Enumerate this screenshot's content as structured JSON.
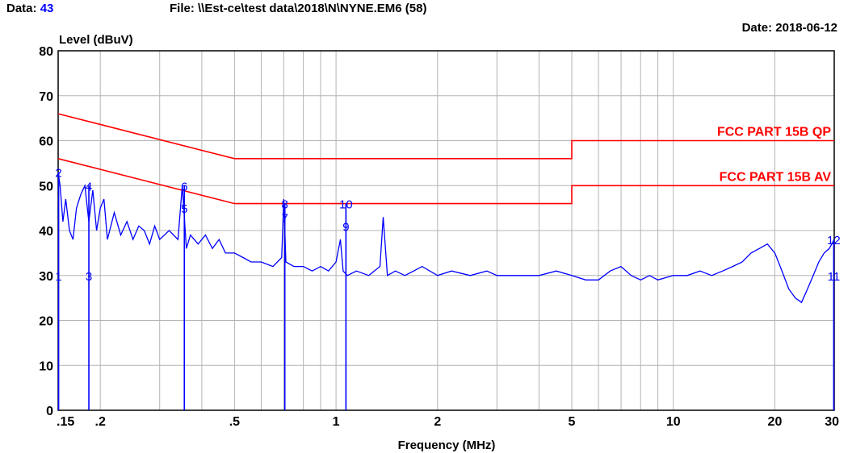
{
  "header": {
    "data_label": "Data:",
    "data_value": "43",
    "file_text": "File: \\\\Est-ce\\test data\\2018\\N\\NYNE.EM6  (58)",
    "date_text": "Date: 2018-06-12"
  },
  "colors": {
    "trace": "#0000ff",
    "limit": "#ff0000",
    "grid": "#b4b4b4",
    "data_value": "#0000ff"
  },
  "chart_data": {
    "type": "line",
    "title": "",
    "ylabel": "Level (dBuV)",
    "xlabel": "Frequency (MHz)",
    "x_scale": "log",
    "xlim": [
      0.15,
      30
    ],
    "ylim": [
      0,
      80
    ],
    "grid": true,
    "x_tick_labels": [
      {
        "value": 0.15,
        "label": ".15"
      },
      {
        "value": 0.2,
        "label": ".2"
      },
      {
        "value": 0.5,
        "label": ".5"
      },
      {
        "value": 1,
        "label": "1"
      },
      {
        "value": 2,
        "label": "2"
      },
      {
        "value": 5,
        "label": "5"
      },
      {
        "value": 10,
        "label": "10"
      },
      {
        "value": 20,
        "label": "20"
      },
      {
        "value": 30,
        "label": "30"
      }
    ],
    "y_ticks": [
      0,
      10,
      20,
      30,
      40,
      50,
      60,
      70,
      80
    ],
    "series": [
      {
        "name": "FCC PART 15B QP",
        "color": "#ff0000",
        "x": [
          0.15,
          0.5,
          0.5,
          5,
          5,
          30
        ],
        "y": [
          66,
          56,
          56,
          56,
          60,
          60
        ]
      },
      {
        "name": "FCC PART 15B AV",
        "color": "#ff0000",
        "x": [
          0.15,
          0.5,
          0.5,
          5,
          5,
          30
        ],
        "y": [
          56,
          46,
          46,
          46,
          50,
          50
        ]
      },
      {
        "name": "",
        "color": "#0000ff",
        "x": [
          0.15,
          0.152,
          0.155,
          0.158,
          0.162,
          0.166,
          0.17,
          0.175,
          0.18,
          0.185,
          0.19,
          0.195,
          0.2,
          0.205,
          0.21,
          0.22,
          0.23,
          0.24,
          0.25,
          0.26,
          0.27,
          0.28,
          0.29,
          0.3,
          0.32,
          0.34,
          0.35,
          0.36,
          0.37,
          0.39,
          0.41,
          0.43,
          0.45,
          0.47,
          0.5,
          0.53,
          0.56,
          0.6,
          0.65,
          0.69,
          0.7,
          0.71,
          0.75,
          0.8,
          0.85,
          0.9,
          0.95,
          1.0,
          1.03,
          1.05,
          1.08,
          1.15,
          1.25,
          1.35,
          1.38,
          1.42,
          1.5,
          1.6,
          1.7,
          1.8,
          2.0,
          2.2,
          2.5,
          2.8,
          3.0,
          3.5,
          4.0,
          4.5,
          5.0,
          5.5,
          6.0,
          6.5,
          7.0,
          7.5,
          8.0,
          8.5,
          9.0,
          10.0,
          11.0,
          12.0,
          13.0,
          14.0,
          15.0,
          16.0,
          17.0,
          18.0,
          19.0,
          20.0,
          21.0,
          22.0,
          23.0,
          24.0,
          25.0,
          26.0,
          27.0,
          28.0,
          29.0,
          30.0
        ],
        "y": [
          53,
          50,
          42,
          47,
          40,
          38,
          45,
          48,
          50,
          42,
          49,
          40,
          45,
          47,
          38,
          44,
          39,
          42,
          38,
          41,
          40,
          37,
          41,
          38,
          40,
          38,
          50,
          36,
          39,
          37,
          39,
          36,
          38,
          35,
          35,
          34,
          33,
          33,
          32,
          34,
          47,
          33,
          32,
          32,
          31,
          32,
          31,
          33,
          38,
          31,
          30,
          31,
          30,
          32,
          43,
          30,
          31,
          30,
          31,
          32,
          30,
          31,
          30,
          31,
          30,
          30,
          30,
          31,
          30,
          29,
          29,
          31,
          32,
          30,
          29,
          30,
          29,
          30,
          30,
          31,
          30,
          31,
          32,
          33,
          35,
          36,
          37,
          35,
          31,
          27,
          25,
          24,
          27,
          30,
          33,
          35,
          36,
          38
        ]
      }
    ],
    "markers": [
      {
        "label": "2",
        "x": 0.1505,
        "y": 53
      },
      {
        "label": "1",
        "x": 0.1505,
        "y": 30
      },
      {
        "label": "4",
        "x": 0.185,
        "y": 50
      },
      {
        "label": "3",
        "x": 0.185,
        "y": 30
      },
      {
        "label": "6",
        "x": 0.355,
        "y": 50
      },
      {
        "label": "5",
        "x": 0.355,
        "y": 45
      },
      {
        "label": "8",
        "x": 0.705,
        "y": 46
      },
      {
        "label": "7",
        "x": 0.705,
        "y": 43
      },
      {
        "label": "10",
        "x": 1.07,
        "y": 46
      },
      {
        "label": "9",
        "x": 1.07,
        "y": 41
      },
      {
        "label": "12",
        "x": 29.9,
        "y": 38
      },
      {
        "label": "11",
        "x": 29.9,
        "y": 30
      }
    ],
    "annotations": [
      {
        "text": "FCC PART 15B QP",
        "x": 30,
        "y": 60
      },
      {
        "text": "FCC PART 15B AV",
        "x": 30,
        "y": 50
      }
    ]
  }
}
